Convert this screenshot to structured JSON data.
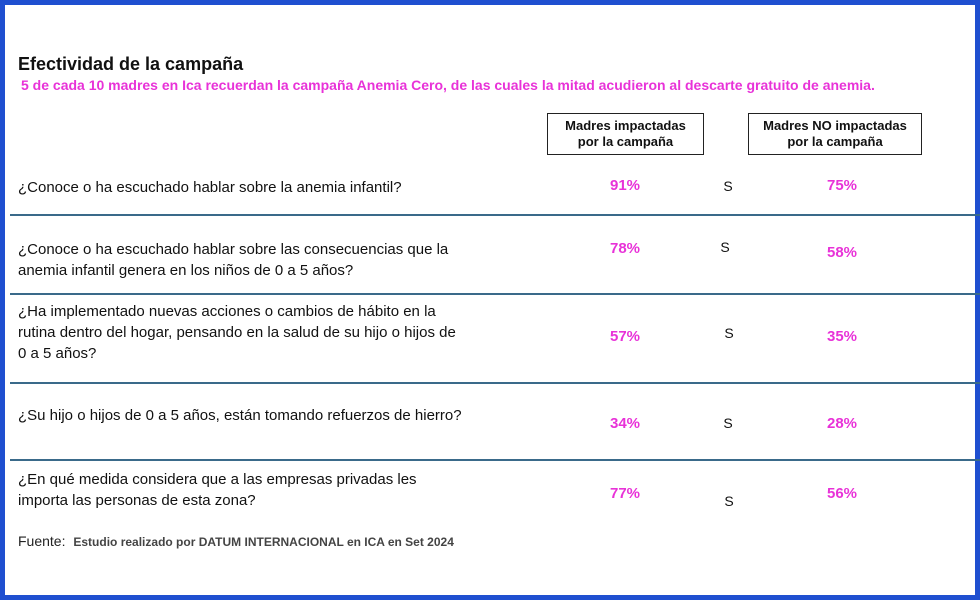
{
  "chart_data": {
    "type": "table",
    "title": "Efectividad de la campaña",
    "subtitle": "5 de cada 10 madres en Ica recuerdan la campaña Anemia Cero, de las cuales la mitad acudieron al descarte gratuito de anemia.",
    "columns": [
      "Madres impactadas\npor la campaña",
      "Madres NO impactadas\npor la campaña"
    ],
    "series": [
      {
        "name": "Madres impactadas por la campaña",
        "values": [
          91,
          78,
          57,
          34,
          77
        ]
      },
      {
        "name": "Madres NO impactadas por la campaña",
        "values": [
          75,
          58,
          35,
          28,
          56
        ]
      }
    ],
    "rows": [
      {
        "question": "¿Conoce o ha escuchado hablar sobre la anemia infantil?",
        "impactadas": "91%",
        "significance": "S",
        "no_impactadas": "75%"
      },
      {
        "question": "¿Conoce o ha escuchado hablar sobre las consecuencias que la\nanemia infantil genera en los niños de 0 a 5 años?",
        "impactadas": "78%",
        "significance": "S",
        "no_impactadas": "58%"
      },
      {
        "question": "¿Ha implementado nuevas acciones o cambios de hábito en la\nrutina dentro del hogar, pensando en la salud de su hijo o hijos de\n0 a 5 años?",
        "impactadas": "57%",
        "significance": "S",
        "no_impactadas": "35%"
      },
      {
        "question": "¿Su hijo o hijos de 0 a 5 años, están tomando refuerzos de hierro?",
        "impactadas": "34%",
        "significance": "S",
        "no_impactadas": "28%"
      },
      {
        "question": "¿En qué medida considera que a las empresas privadas les\nimporta las personas de esta zona?",
        "impactadas": "77%",
        "significance": "S",
        "no_impactadas": "56%"
      }
    ],
    "source_label": "Fuente:",
    "source_text": "Estudio realizado por DATUM INTERNACIONAL en ICA en Set 2024"
  },
  "colors": {
    "frame": "#1f4fd0",
    "accent": "#e832d8",
    "divider": "#3a6a8a"
  }
}
